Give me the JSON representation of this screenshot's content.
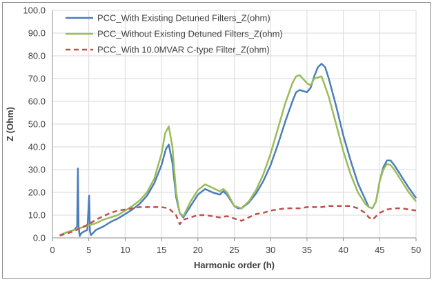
{
  "chart_data": {
    "type": "line",
    "title": "",
    "xlabel": "Harmonic order (h)",
    "ylabel": "Z (Ohm)",
    "xlim": [
      0,
      50
    ],
    "ylim": [
      0,
      100
    ],
    "x_ticks": [
      0,
      5,
      10,
      15,
      20,
      25,
      30,
      35,
      40,
      45,
      50
    ],
    "y_ticks": [
      0,
      10,
      20,
      30,
      40,
      50,
      60,
      70,
      80,
      90,
      100
    ],
    "x_tick_labels": [
      "0",
      "5",
      "10",
      "15",
      "20",
      "25",
      "30",
      "35",
      "40",
      "45",
      "50"
    ],
    "y_tick_labels": [
      "0.0",
      "10.0",
      "20.0",
      "30.0",
      "40.0",
      "50.0",
      "60.0",
      "70.0",
      "80.0",
      "90.0",
      "100.0"
    ],
    "grid": true,
    "legend_position": "top-left",
    "series": [
      {
        "name": "PCC_With Existing Detuned Filters_Z(ohm)",
        "color": "#4a7ebb",
        "style": "solid",
        "points": [
          [
            1,
            1.2
          ],
          [
            2,
            2.5
          ],
          [
            3,
            3.5
          ],
          [
            3.4,
            5
          ],
          [
            3.5,
            30.5
          ],
          [
            3.6,
            5
          ],
          [
            3.75,
            0.8
          ],
          [
            4,
            2.2
          ],
          [
            4.8,
            3.5
          ],
          [
            5.05,
            18.5
          ],
          [
            5.15,
            3
          ],
          [
            5.3,
            1.2
          ],
          [
            6,
            3.5
          ],
          [
            7,
            5
          ],
          [
            8,
            7
          ],
          [
            9,
            8.5
          ],
          [
            10,
            10.5
          ],
          [
            11,
            12.5
          ],
          [
            12,
            15
          ],
          [
            13,
            18.5
          ],
          [
            14,
            24
          ],
          [
            15,
            32
          ],
          [
            15.6,
            39
          ],
          [
            16,
            41
          ],
          [
            16.5,
            33
          ],
          [
            17,
            18
          ],
          [
            17.5,
            11
          ],
          [
            18,
            9
          ],
          [
            19,
            14
          ],
          [
            20,
            19
          ],
          [
            21,
            21.5
          ],
          [
            22,
            20
          ],
          [
            23,
            19
          ],
          [
            23.5,
            20.5
          ],
          [
            24,
            19
          ],
          [
            25,
            14
          ],
          [
            25.5,
            13
          ],
          [
            26,
            13
          ],
          [
            27,
            15.5
          ],
          [
            28,
            19.5
          ],
          [
            29,
            25
          ],
          [
            30,
            32
          ],
          [
            31,
            41
          ],
          [
            32,
            51
          ],
          [
            33,
            60
          ],
          [
            33.5,
            64
          ],
          [
            34,
            65
          ],
          [
            35,
            64
          ],
          [
            35.5,
            66
          ],
          [
            36,
            71
          ],
          [
            36.5,
            75
          ],
          [
            37,
            76.5
          ],
          [
            37.5,
            75
          ],
          [
            38,
            70
          ],
          [
            39,
            58
          ],
          [
            40,
            45
          ],
          [
            41,
            34
          ],
          [
            42,
            24
          ],
          [
            43,
            17
          ],
          [
            43.5,
            13.5
          ],
          [
            44,
            13
          ],
          [
            44.5,
            16
          ],
          [
            45,
            25
          ],
          [
            45.5,
            31
          ],
          [
            46,
            34
          ],
          [
            46.5,
            34
          ],
          [
            47,
            32
          ],
          [
            48,
            27
          ],
          [
            49,
            22
          ],
          [
            50,
            17.5
          ]
        ]
      },
      {
        "name": "PCC_Without Existing Detuned Filters_Z(ohm)",
        "color": "#9bbb59",
        "style": "solid",
        "points": [
          [
            1,
            1.2
          ],
          [
            2,
            2.5
          ],
          [
            3,
            3.5
          ],
          [
            4,
            4.5
          ],
          [
            5,
            5.5
          ],
          [
            6,
            6.5
          ],
          [
            7,
            8
          ],
          [
            8,
            9
          ],
          [
            9,
            10
          ],
          [
            10,
            12
          ],
          [
            11,
            14
          ],
          [
            12,
            16.5
          ],
          [
            13,
            20
          ],
          [
            14,
            26
          ],
          [
            15,
            37
          ],
          [
            15.5,
            46
          ],
          [
            16,
            49
          ],
          [
            16.5,
            40
          ],
          [
            17,
            20
          ],
          [
            17.5,
            11
          ],
          [
            18,
            9.5
          ],
          [
            19,
            16
          ],
          [
            20,
            21
          ],
          [
            21,
            23.5
          ],
          [
            22,
            22
          ],
          [
            23,
            20.5
          ],
          [
            23.5,
            21.5
          ],
          [
            24,
            20
          ],
          [
            25,
            14
          ],
          [
            26,
            13
          ],
          [
            27,
            16
          ],
          [
            28,
            21
          ],
          [
            29,
            28
          ],
          [
            30,
            37
          ],
          [
            31,
            48
          ],
          [
            32,
            59
          ],
          [
            33,
            68
          ],
          [
            33.5,
            71
          ],
          [
            34,
            71.5
          ],
          [
            35,
            68
          ],
          [
            35.5,
            67
          ],
          [
            36,
            70
          ],
          [
            37,
            71
          ],
          [
            38,
            62
          ],
          [
            39,
            50
          ],
          [
            40,
            38
          ],
          [
            41,
            28
          ],
          [
            42,
            20
          ],
          [
            43,
            15
          ],
          [
            43.5,
            13.5
          ],
          [
            44,
            13
          ],
          [
            44.5,
            16
          ],
          [
            45,
            25
          ],
          [
            45.5,
            30
          ],
          [
            46,
            32.5
          ],
          [
            46.5,
            32
          ],
          [
            47,
            30
          ],
          [
            48,
            25
          ],
          [
            49,
            20
          ],
          [
            50,
            16
          ]
        ]
      },
      {
        "name": "PCC_With 10.0MVAR C-type Filter_Z(ohm)",
        "color": "#c0504d",
        "style": "dashed",
        "points": [
          [
            1,
            1
          ],
          [
            2,
            2
          ],
          [
            3,
            3
          ],
          [
            4,
            4.5
          ],
          [
            5,
            6
          ],
          [
            6,
            8
          ],
          [
            7,
            9.5
          ],
          [
            8,
            11
          ],
          [
            9,
            12
          ],
          [
            10,
            12.5
          ],
          [
            11,
            13
          ],
          [
            12,
            13.5
          ],
          [
            13,
            13.5
          ],
          [
            14,
            13.5
          ],
          [
            15,
            13.5
          ],
          [
            16,
            13
          ],
          [
            17,
            10
          ],
          [
            17.5,
            6
          ],
          [
            18,
            8
          ],
          [
            19,
            9
          ],
          [
            20,
            10
          ],
          [
            21,
            10
          ],
          [
            22,
            9.5
          ],
          [
            23,
            9
          ],
          [
            24,
            9.5
          ],
          [
            25,
            8.5
          ],
          [
            26,
            7.5
          ],
          [
            27,
            9
          ],
          [
            28,
            10.5
          ],
          [
            29,
            11
          ],
          [
            30,
            12
          ],
          [
            31,
            12.5
          ],
          [
            32,
            13
          ],
          [
            33,
            13
          ],
          [
            34,
            13
          ],
          [
            35,
            13.5
          ],
          [
            36,
            13.5
          ],
          [
            37,
            13.5
          ],
          [
            38,
            14
          ],
          [
            39,
            14
          ],
          [
            40,
            14
          ],
          [
            41,
            14
          ],
          [
            42,
            13
          ],
          [
            43,
            11
          ],
          [
            43.5,
            9
          ],
          [
            44,
            8
          ],
          [
            45,
            11
          ],
          [
            46,
            12.5
          ],
          [
            47,
            13
          ],
          [
            48,
            13
          ],
          [
            49,
            12.5
          ],
          [
            50,
            12
          ]
        ]
      }
    ]
  }
}
